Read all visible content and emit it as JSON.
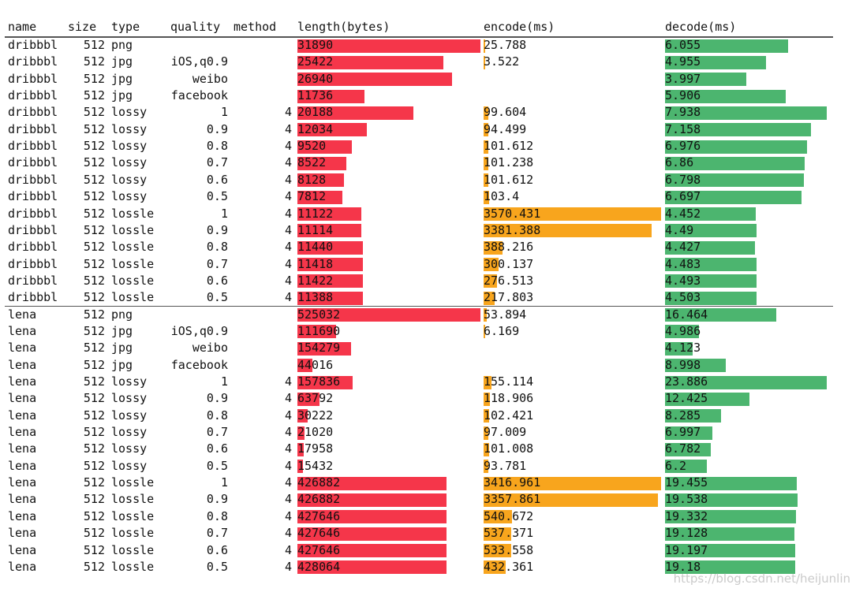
{
  "chart_data": {
    "type": "table",
    "columns": [
      "name",
      "size",
      "type",
      "quality",
      "method",
      "length(bytes)",
      "encode(ms)",
      "decode(ms)"
    ],
    "colors": {
      "length": "#f5364a",
      "encode": "#f8a51d",
      "decode": "#4cb56f"
    },
    "groups": [
      {
        "rows": [
          [
            "dribbbl",
            "512",
            "png",
            "",
            "",
            "31890",
            "25.788",
            "6.055"
          ],
          [
            "dribbbl",
            "512",
            "jpg",
            "iOS,q0.9",
            "",
            "25422",
            "3.522",
            "4.955"
          ],
          [
            "dribbbl",
            "512",
            "jpg",
            "weibo",
            "",
            "26940",
            "",
            "3.997"
          ],
          [
            "dribbbl",
            "512",
            "jpg",
            "facebook",
            "",
            "11736",
            "",
            "5.906"
          ],
          [
            "dribbbl",
            "512",
            "lossy",
            "1",
            "4",
            "20188",
            "99.604",
            "7.938"
          ],
          [
            "dribbbl",
            "512",
            "lossy",
            "0.9",
            "4",
            "12034",
            "94.499",
            "7.158"
          ],
          [
            "dribbbl",
            "512",
            "lossy",
            "0.8",
            "4",
            "9520",
            "101.612",
            "6.976"
          ],
          [
            "dribbbl",
            "512",
            "lossy",
            "0.7",
            "4",
            "8522",
            "101.238",
            "6.86"
          ],
          [
            "dribbbl",
            "512",
            "lossy",
            "0.6",
            "4",
            "8128",
            "101.612",
            "6.798"
          ],
          [
            "dribbbl",
            "512",
            "lossy",
            "0.5",
            "4",
            "7812",
            "103.4",
            "6.697"
          ],
          [
            "dribbbl",
            "512",
            "lossle",
            "1",
            "4",
            "11122",
            "3570.431",
            "4.452"
          ],
          [
            "dribbbl",
            "512",
            "lossle",
            "0.9",
            "4",
            "11114",
            "3381.388",
            "4.49"
          ],
          [
            "dribbbl",
            "512",
            "lossle",
            "0.8",
            "4",
            "11440",
            "388.216",
            "4.427"
          ],
          [
            "dribbbl",
            "512",
            "lossle",
            "0.7",
            "4",
            "11418",
            "300.137",
            "4.483"
          ],
          [
            "dribbbl",
            "512",
            "lossle",
            "0.6",
            "4",
            "11422",
            "276.513",
            "4.493"
          ],
          [
            "dribbbl",
            "512",
            "lossle",
            "0.5",
            "4",
            "11388",
            "217.803",
            "4.503"
          ]
        ]
      },
      {
        "rows": [
          [
            "lena",
            "512",
            "png",
            "",
            "",
            "525032",
            "53.894",
            "16.464"
          ],
          [
            "lena",
            "512",
            "jpg",
            "iOS,q0.9",
            "",
            "111690",
            "6.169",
            "4.986"
          ],
          [
            "lena",
            "512",
            "jpg",
            "weibo",
            "",
            "154279",
            "",
            "4.123"
          ],
          [
            "lena",
            "512",
            "jpg",
            "facebook",
            "",
            "44016",
            "",
            "8.998"
          ],
          [
            "lena",
            "512",
            "lossy",
            "1",
            "4",
            "157836",
            "155.114",
            "23.886"
          ],
          [
            "lena",
            "512",
            "lossy",
            "0.9",
            "4",
            "63792",
            "118.906",
            "12.425"
          ],
          [
            "lena",
            "512",
            "lossy",
            "0.8",
            "4",
            "30222",
            "102.421",
            "8.285"
          ],
          [
            "lena",
            "512",
            "lossy",
            "0.7",
            "4",
            "21020",
            "97.009",
            "6.997"
          ],
          [
            "lena",
            "512",
            "lossy",
            "0.6",
            "4",
            "17958",
            "101.008",
            "6.782"
          ],
          [
            "lena",
            "512",
            "lossy",
            "0.5",
            "4",
            "15432",
            "93.781",
            "6.2"
          ],
          [
            "lena",
            "512",
            "lossle",
            "1",
            "4",
            "426882",
            "3416.961",
            "19.455"
          ],
          [
            "lena",
            "512",
            "lossle",
            "0.9",
            "4",
            "426882",
            "3357.861",
            "19.538"
          ],
          [
            "lena",
            "512",
            "lossle",
            "0.8",
            "4",
            "427646",
            "540.672",
            "19.332"
          ],
          [
            "lena",
            "512",
            "lossle",
            "0.7",
            "4",
            "427646",
            "537.371",
            "19.128"
          ],
          [
            "lena",
            "512",
            "lossle",
            "0.6",
            "4",
            "427646",
            "533.558",
            "19.197"
          ],
          [
            "lena",
            "512",
            "lossle",
            "0.5",
            "4",
            "428064",
            "432.361",
            "19.18"
          ]
        ]
      }
    ]
  },
  "watermark": "https://blog.csdn.net/heijunlin"
}
